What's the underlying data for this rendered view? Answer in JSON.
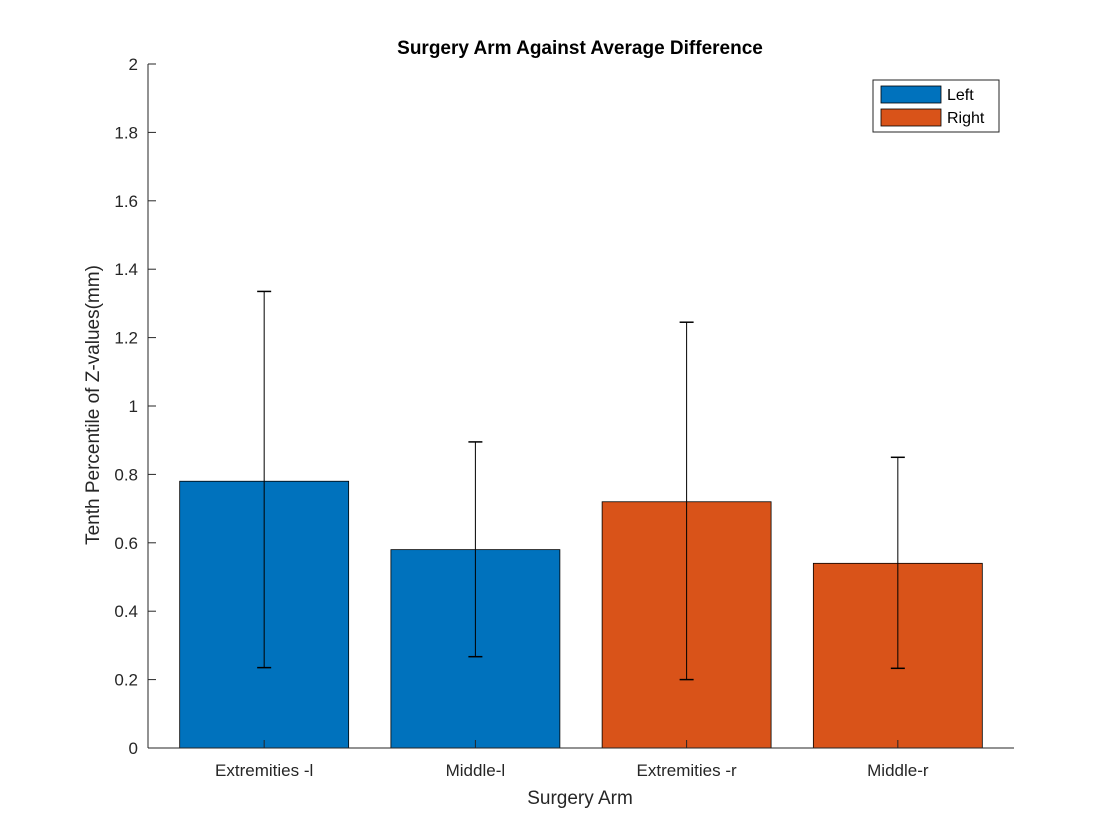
{
  "chart_data": {
    "type": "bar",
    "title": "Surgery Arm Against Average Difference",
    "xlabel": "Surgery Arm",
    "ylabel": "Tenth Percentile of Z-values(mm)",
    "categories": [
      "Extremities -l",
      "Middle-l",
      "Extremities -r",
      "Middle-r"
    ],
    "values": [
      0.78,
      0.58,
      0.72,
      0.54
    ],
    "error_low": [
      0.235,
      0.267,
      0.2,
      0.233
    ],
    "error_high": [
      1.335,
      0.895,
      1.245,
      0.85
    ],
    "bar_series": [
      "Left",
      "Left",
      "Right",
      "Right"
    ],
    "series": [
      {
        "name": "Left",
        "color": "#0072BD"
      },
      {
        "name": "Right",
        "color": "#D95319"
      }
    ],
    "ylim": [
      0,
      2
    ],
    "yticks": [
      0,
      0.2,
      0.4,
      0.6,
      0.8,
      1,
      1.2,
      1.4,
      1.6,
      1.8,
      2
    ],
    "ytick_labels": [
      "0",
      "0.2",
      "0.4",
      "0.6",
      "0.8",
      "1",
      "1.2",
      "1.4",
      "1.6",
      "1.8",
      "2"
    ],
    "grid": false,
    "legend_position": "top-right"
  }
}
